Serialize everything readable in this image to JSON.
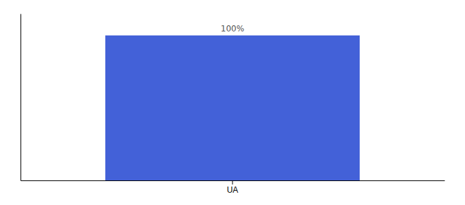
{
  "chart_data": {
    "type": "bar",
    "categories": [
      "UA"
    ],
    "values": [
      100
    ],
    "value_labels": [
      "100%"
    ],
    "data_labels": true,
    "color": "#4361d8",
    "ylim": [
      0,
      115
    ],
    "tick_labels": "x",
    "grid": false
  }
}
